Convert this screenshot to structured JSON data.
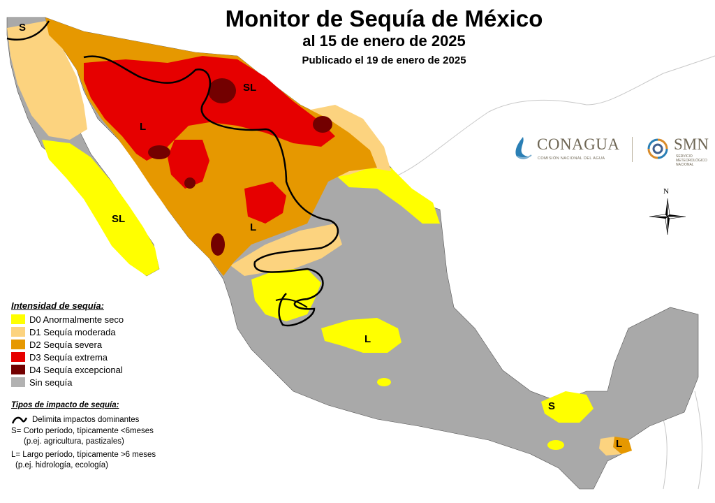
{
  "title": "Monitor de Sequía de México",
  "subtitle": "al 15 de enero de 2025",
  "published": "Publicado el 19 de enero de 2025",
  "legend": {
    "title": "Intensidad de sequía:",
    "items": [
      {
        "label": "D0 Anormalmente seco",
        "color": "#ffff00"
      },
      {
        "label": "D1 Sequía moderada",
        "color": "#fcd37f"
      },
      {
        "label": "D2 Sequía severa",
        "color": "#e69800"
      },
      {
        "label": "D3 Sequía extrema",
        "color": "#e60000"
      },
      {
        "label": "D4 Sequía excepcional",
        "color": "#730000"
      },
      {
        "label": "Sin sequía",
        "color": "#b2b2b2"
      }
    ]
  },
  "impact": {
    "title": "Tipos de impacto de sequía:",
    "boundary": "Delimita impactos dominantes",
    "short_line1": "S= Corto período, típicamente <6meses",
    "short_line2": "(p.ej. agricultura, pastizales)",
    "long_line1": "L= Largo período, típicamente >6 meses",
    "long_line2": "(p.ej. hidrología, ecología)"
  },
  "logos": {
    "conagua": "CONAGUA",
    "conagua_sub": "COMISIÓN NACIONAL DEL AGUA",
    "smn": "SMN",
    "smn_sub": "SERVICIO METEOROLÓGICO NACIONAL"
  },
  "north_letter": "N",
  "map_labels": {
    "s_northwest": "S",
    "sl_north": "SL",
    "l_sonora": "L",
    "sl_baja": "SL",
    "l_durango": "L",
    "l_bajio": "L",
    "s_southeast": "S",
    "l_chiapas": "L"
  }
}
